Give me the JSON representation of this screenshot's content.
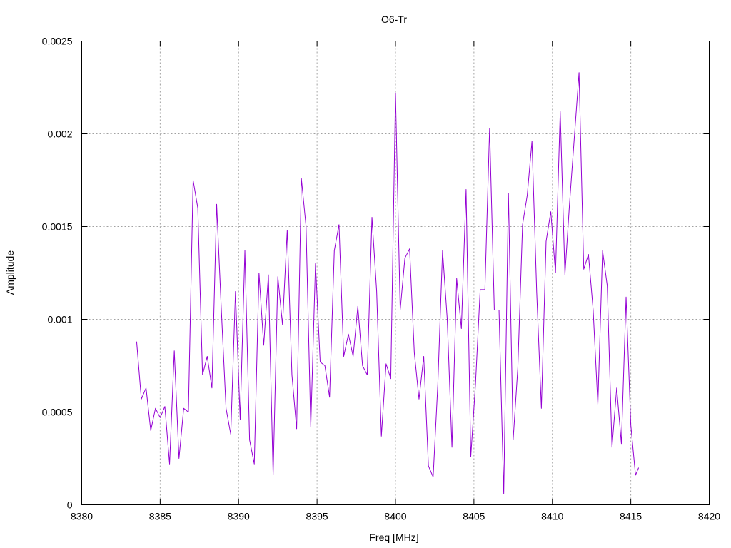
{
  "chart_data": {
    "type": "line",
    "title": "O6-Tr",
    "xlabel": "Freq [MHz]",
    "ylabel": "Amplitude",
    "xlim": [
      8380,
      8420
    ],
    "ylim": [
      0,
      0.0025
    ],
    "x_ticks": [
      "8380",
      "8385",
      "8390",
      "8395",
      "8400",
      "8405",
      "8410",
      "8415",
      "8420"
    ],
    "y_ticks": [
      "0",
      "0.0005",
      "0.001",
      "0.0015",
      "0.002",
      "0.0025"
    ],
    "x_tick_values": [
      8380,
      8385,
      8390,
      8395,
      8400,
      8405,
      8410,
      8415,
      8420
    ],
    "y_tick_values": [
      0,
      0.0005,
      0.001,
      0.0015,
      0.002,
      0.0025
    ],
    "grid": true,
    "series": [
      {
        "color": "#9400d3",
        "x": [
          8383.5,
          8383.8,
          8384.1,
          8384.4,
          8384.7,
          8385.0,
          8385.3,
          8385.6,
          8385.9,
          8386.2,
          8386.5,
          8386.8,
          8387.1,
          8387.4,
          8387.7,
          8388.0,
          8388.3,
          8388.6,
          8388.9,
          8389.2,
          8389.5,
          8389.8,
          8390.1,
          8390.4,
          8390.7,
          8391.0,
          8391.3,
          8391.6,
          8391.9,
          8392.2,
          8392.5,
          8392.8,
          8393.1,
          8393.4,
          8393.7,
          8394.0,
          8394.3,
          8394.6,
          8394.9,
          8395.2,
          8395.5,
          8395.8,
          8396.1,
          8396.4,
          8396.7,
          8397.0,
          8397.3,
          8397.6,
          8397.9,
          8398.2,
          8398.5,
          8398.8,
          8399.1,
          8399.4,
          8399.7,
          8400.0,
          8400.3,
          8400.6,
          8400.9,
          8401.2,
          8401.5,
          8401.8,
          8402.1,
          8402.4,
          8402.7,
          8403.0,
          8403.3,
          8403.6,
          8403.9,
          8404.2,
          8404.5,
          8404.8,
          8405.1,
          8405.4,
          8405.7,
          8406.0,
          8406.3,
          8406.6,
          8406.9,
          8407.2,
          8407.5,
          8407.8,
          8408.1,
          8408.4,
          8408.7,
          8409.0,
          8409.3,
          8409.6,
          8409.9,
          8410.2,
          8410.5,
          8410.8,
          8411.1,
          8411.4,
          8411.7,
          8412.0,
          8412.3,
          8412.6,
          8412.9,
          8413.2,
          8413.5,
          8413.8,
          8414.1,
          8414.4,
          8414.7,
          8415.0,
          8415.3,
          8415.5
        ],
        "y": [
          0.00088,
          0.00057,
          0.00063,
          0.0004,
          0.00052,
          0.00047,
          0.00053,
          0.00022,
          0.00083,
          0.00025,
          0.00052,
          0.0005,
          0.00175,
          0.0016,
          0.0007,
          0.0008,
          0.00063,
          0.00162,
          0.00105,
          0.00052,
          0.00038,
          0.00115,
          0.00046,
          0.00137,
          0.00035,
          0.00022,
          0.00125,
          0.00086,
          0.00124,
          0.00016,
          0.00123,
          0.00097,
          0.00148,
          0.0007,
          0.00041,
          0.00176,
          0.0015,
          0.00042,
          0.0013,
          0.00077,
          0.00075,
          0.00058,
          0.00137,
          0.00151,
          0.0008,
          0.00092,
          0.0008,
          0.00107,
          0.00075,
          0.0007,
          0.00155,
          0.00115,
          0.00037,
          0.00076,
          0.00068,
          0.00222,
          0.00105,
          0.00133,
          0.00138,
          0.00082,
          0.00057,
          0.0008,
          0.00021,
          0.00015,
          0.00065,
          0.00137,
          0.001,
          0.00031,
          0.00122,
          0.00095,
          0.0017,
          0.00026,
          0.00065,
          0.00116,
          0.00116,
          0.00203,
          0.00105,
          0.00105,
          6e-05,
          0.00168,
          0.00035,
          0.00074,
          0.00151,
          0.00167,
          0.00196,
          0.00115,
          0.00052,
          0.00142,
          0.00158,
          0.00125,
          0.00212,
          0.00124,
          0.00163,
          0.00198,
          0.00233,
          0.00127,
          0.00135,
          0.00105,
          0.00054,
          0.00137,
          0.00118,
          0.00031,
          0.00063,
          0.00033,
          0.00112,
          0.00043,
          0.00016,
          0.0002
        ]
      }
    ]
  }
}
